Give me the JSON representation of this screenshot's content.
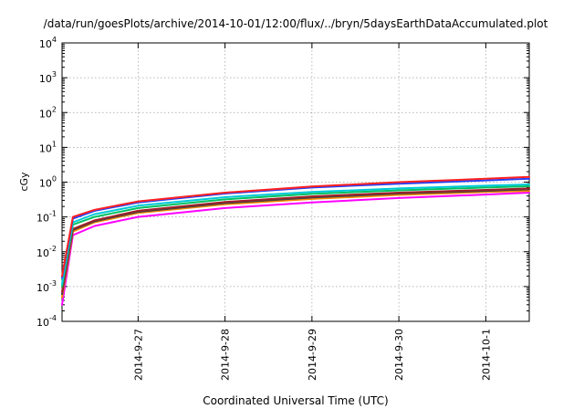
{
  "chart_data": {
    "type": "line",
    "title": "/data/run/goesPlots/archive/2014-10-01/12:00/flux/../bryn/5daysEarthDataAccumulated.plot",
    "xlabel": "Coordinated Universal Time (UTC)",
    "ylabel": "cGy",
    "x_unit": "days",
    "x_range": [
      "2014-09-26T03:00",
      "2014-10-01T12:00"
    ],
    "yscale": "log",
    "ylim": [
      0.0001,
      10000
    ],
    "y_ticks": [
      {
        "base": "10",
        "exp": "-4"
      },
      {
        "base": "10",
        "exp": "-3"
      },
      {
        "base": "10",
        "exp": "-2"
      },
      {
        "base": "10",
        "exp": "-1"
      },
      {
        "base": "10",
        "exp": "0"
      },
      {
        "base": "10",
        "exp": "1"
      },
      {
        "base": "10",
        "exp": "2"
      },
      {
        "base": "10",
        "exp": "3"
      },
      {
        "base": "10",
        "exp": "4"
      }
    ],
    "x_ticks": [
      {
        "x": "2014-09-27T00:00",
        "label": "2014-9-27"
      },
      {
        "x": "2014-09-28T00:00",
        "label": "2014-9-28"
      },
      {
        "x": "2014-09-29T00:00",
        "label": "2014-9-29"
      },
      {
        "x": "2014-09-30T00:00",
        "label": "2014-9-30"
      },
      {
        "x": "2014-10-01T00:00",
        "label": "2014-10-1"
      }
    ],
    "grid": true,
    "series": [
      {
        "color": "#ff00ff",
        "x": [
          "2014-09-26T03:00",
          "2014-09-26T06:00",
          "2014-09-26T12:00",
          "2014-09-27T00:00",
          "2014-09-28T00:00",
          "2014-09-29T00:00",
          "2014-09-30T00:00",
          "2014-10-01T00:00",
          "2014-10-01T12:00"
        ],
        "y": [
          0.0003,
          0.03,
          0.055,
          0.1,
          0.18,
          0.26,
          0.35,
          0.44,
          0.5
        ]
      },
      {
        "color": "#ff8800",
        "x": [
          "2014-09-26T03:00",
          "2014-09-26T06:00",
          "2014-09-26T12:00",
          "2014-09-27T00:00",
          "2014-09-28T00:00",
          "2014-09-29T00:00",
          "2014-09-30T00:00",
          "2014-10-01T00:00",
          "2014-10-01T12:00"
        ],
        "y": [
          0.0005,
          0.038,
          0.07,
          0.13,
          0.23,
          0.33,
          0.43,
          0.52,
          0.56
        ]
      },
      {
        "color": "#444444",
        "x": [
          "2014-09-26T03:00",
          "2014-09-26T06:00",
          "2014-09-26T12:00",
          "2014-09-27T00:00",
          "2014-09-28T00:00",
          "2014-09-29T00:00",
          "2014-09-30T00:00",
          "2014-10-01T00:00",
          "2014-10-01T12:00"
        ],
        "y": [
          0.0006,
          0.042,
          0.075,
          0.14,
          0.25,
          0.36,
          0.47,
          0.56,
          0.62
        ]
      },
      {
        "color": "#a0202a",
        "x": [
          "2014-09-26T03:00",
          "2014-09-26T06:00",
          "2014-09-26T12:00",
          "2014-09-27T00:00",
          "2014-09-28T00:00",
          "2014-09-29T00:00",
          "2014-09-30T00:00",
          "2014-10-01T00:00",
          "2014-10-01T12:00"
        ],
        "y": [
          0.0007,
          0.045,
          0.08,
          0.15,
          0.27,
          0.39,
          0.5,
          0.6,
          0.66
        ]
      },
      {
        "color": "#00c060",
        "x": [
          "2014-09-26T03:00",
          "2014-09-26T06:00",
          "2014-09-26T12:00",
          "2014-09-27T00:00",
          "2014-09-28T00:00",
          "2014-09-29T00:00",
          "2014-09-30T00:00",
          "2014-10-01T00:00",
          "2014-10-01T12:00"
        ],
        "y": [
          0.001,
          0.06,
          0.1,
          0.18,
          0.32,
          0.46,
          0.58,
          0.7,
          0.76
        ]
      },
      {
        "color": "#00c8d8",
        "x": [
          "2014-09-26T03:00",
          "2014-09-26T06:00",
          "2014-09-26T12:00",
          "2014-09-27T00:00",
          "2014-09-28T00:00",
          "2014-09-29T00:00",
          "2014-09-30T00:00",
          "2014-10-01T00:00",
          "2014-10-01T12:00"
        ],
        "y": [
          0.0012,
          0.07,
          0.12,
          0.21,
          0.37,
          0.52,
          0.66,
          0.79,
          0.86
        ]
      },
      {
        "color": "#2040ff",
        "x": [
          "2014-09-26T03:00",
          "2014-09-26T06:00",
          "2014-09-26T12:00",
          "2014-09-27T00:00",
          "2014-09-28T00:00",
          "2014-09-29T00:00",
          "2014-09-30T00:00",
          "2014-10-01T00:00",
          "2014-10-01T12:00"
        ],
        "y": [
          0.0018,
          0.09,
          0.15,
          0.26,
          0.47,
          0.7,
          0.9,
          1.12,
          1.25
        ]
      },
      {
        "color": "#ff2020",
        "x": [
          "2014-09-26T03:00",
          "2014-09-26T06:00",
          "2014-09-26T12:00",
          "2014-09-27T00:00",
          "2014-09-28T00:00",
          "2014-09-29T00:00",
          "2014-09-30T00:00",
          "2014-10-01T00:00",
          "2014-10-01T12:00"
        ],
        "y": [
          0.002,
          0.1,
          0.16,
          0.28,
          0.5,
          0.75,
          1.0,
          1.25,
          1.42
        ]
      }
    ]
  }
}
